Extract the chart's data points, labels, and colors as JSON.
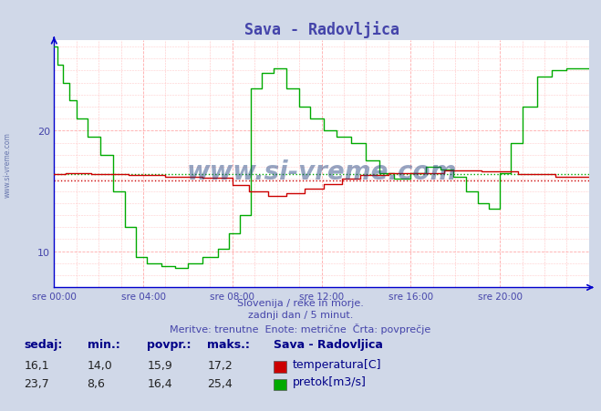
{
  "title": "Sava - Radovljica",
  "title_color": "#4444aa",
  "title_fontsize": 12,
  "bg_color": "#d0d8e8",
  "plot_bg_color": "#ffffff",
  "grid_color": "#ffaaaa",
  "axis_color": "#0000cc",
  "tick_color": "#4444aa",
  "footnote_lines": [
    "Slovenija / reke in morje.",
    "zadnji dan / 5 minut.",
    "Meritve: trenutne  Enote: metrične  Črta: povprečje"
  ],
  "footnote_color": "#4444aa",
  "footnote_fontsize": 8,
  "xlim": [
    0,
    288
  ],
  "ylim": [
    7,
    27.5
  ],
  "yticks": [
    10,
    20
  ],
  "xtick_labels": [
    "sre 00:00",
    "sre 04:00",
    "sre 08:00",
    "sre 12:00",
    "sre 16:00",
    "sre 20:00"
  ],
  "xtick_positions": [
    0,
    48,
    96,
    144,
    192,
    240
  ],
  "temp_color": "#cc0000",
  "flow_color": "#00aa00",
  "avg_temp": 15.9,
  "avg_flow": 16.4,
  "temp_min": 14.0,
  "temp_max": 17.2,
  "temp_current": 16.1,
  "flow_min": 8.6,
  "flow_max": 25.4,
  "flow_current": 23.7,
  "temp_povpr": 15.9,
  "flow_povpr": 16.4,
  "legend_title": "Sava - Radovljica",
  "table_header_color": "#000088",
  "table_fontsize": 9,
  "watermark": "www.si-vreme.com",
  "watermark_color": "#1a3a7a",
  "watermark_alpha": 0.45
}
